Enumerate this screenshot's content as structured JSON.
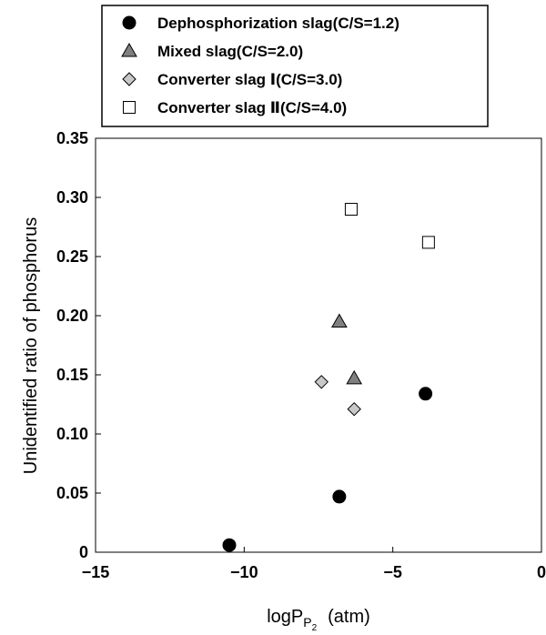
{
  "chart_data": {
    "type": "scatter",
    "xlabel": "logP",
    "xlabel_sub": "P",
    "xlabel_sub2": "2",
    "xlabel_unit": "(atm)",
    "ylabel": "Unidentified ratio of phosphorus",
    "xlim": [
      -15,
      0
    ],
    "ylim": [
      0,
      0.35
    ],
    "x_ticks": [
      -15,
      -10,
      -5,
      0
    ],
    "x_tick_labels": [
      "−15",
      "−10",
      "−5",
      "0"
    ],
    "y_ticks": [
      0,
      0.05,
      0.1,
      0.15,
      0.2,
      0.25,
      0.3,
      0.35
    ],
    "y_tick_labels": [
      "0",
      "0.05",
      "0.10",
      "0.15",
      "0.20",
      "0.25",
      "0.30",
      "0.35"
    ],
    "grid": false,
    "legend_position": "top",
    "series": [
      {
        "name": "Dephosphorization slag(C/S=1.2)",
        "marker": "circle",
        "fill": "#000000",
        "points": [
          [
            -10.5,
            0.006
          ],
          [
            -6.8,
            0.047
          ],
          [
            -3.9,
            0.134
          ]
        ]
      },
      {
        "name": "Mixed slag(C/S=2.0)",
        "marker": "triangle",
        "fill": "#808080",
        "points": [
          [
            -6.8,
            0.195
          ],
          [
            -6.3,
            0.147
          ]
        ]
      },
      {
        "name": "Converter slag Ⅰ(C/S=3.0)",
        "marker": "diamond",
        "fill": "#c8c8c8",
        "points": [
          [
            -7.4,
            0.144
          ],
          [
            -6.3,
            0.121
          ]
        ]
      },
      {
        "name": "Converter slag Ⅱ(C/S=4.0)",
        "marker": "square",
        "fill": "#ffffff",
        "points": [
          [
            -6.4,
            0.29
          ],
          [
            -3.8,
            0.262
          ]
        ]
      }
    ]
  }
}
